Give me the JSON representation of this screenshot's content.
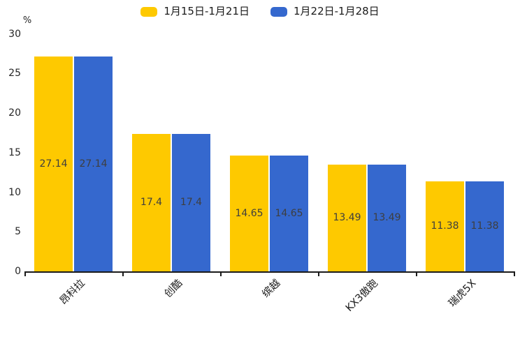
{
  "chart_data": {
    "type": "bar",
    "title": "",
    "categories": [
      "昂科拉",
      "创酷",
      "缤越",
      "KX3傲跑",
      "瑞虎5X"
    ],
    "series": [
      {
        "name": "1月15日-1月21日",
        "color": "#FEC900",
        "values": [
          27.14,
          17.4,
          14.65,
          13.49,
          11.38
        ]
      },
      {
        "name": "1月22日-1月28日",
        "color": "#3568CE",
        "values": [
          27.14,
          17.4,
          14.65,
          13.49,
          11.38
        ]
      }
    ],
    "value_labels": [
      [
        "27.14",
        "17.4",
        "14.65",
        "13.49",
        "11.38"
      ],
      [
        "27.14",
        "17.4",
        "14.65",
        "13.49",
        "11.38"
      ]
    ],
    "ylabel": "%",
    "ylim": [
      0,
      30
    ],
    "yticks": [
      "0",
      "5",
      "10",
      "15",
      "20",
      "25",
      "30"
    ],
    "grid": false,
    "legend_position": "top-center"
  },
  "colors": {
    "axis": "#1a1a1a",
    "tick_label": "#262626",
    "bar_value_label": "#3e3e3e",
    "background": "#ffffff"
  }
}
